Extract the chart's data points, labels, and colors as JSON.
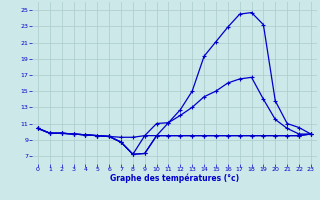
{
  "xlabel": "Graphe des températures (°c)",
  "background_color": "#cce8e8",
  "grid_color": "#aacccc",
  "line_color": "#0000cc",
  "ylim": [
    6,
    26
  ],
  "xlim": [
    -0.5,
    23.5
  ],
  "yticks": [
    7,
    9,
    11,
    13,
    15,
    17,
    19,
    21,
    23,
    25
  ],
  "xticks": [
    0,
    1,
    2,
    3,
    4,
    5,
    6,
    7,
    8,
    9,
    10,
    11,
    12,
    13,
    14,
    15,
    16,
    17,
    18,
    19,
    20,
    21,
    22,
    23
  ],
  "curve1_x": [
    0,
    1,
    2,
    3,
    4,
    5,
    6,
    7,
    8,
    9,
    10,
    11,
    12,
    13,
    14,
    15,
    16,
    17,
    18,
    19,
    20,
    21,
    22,
    23
  ],
  "curve1_y": [
    10.4,
    9.8,
    9.8,
    9.7,
    9.6,
    9.5,
    9.4,
    8.7,
    7.2,
    7.3,
    9.5,
    11.1,
    12.7,
    15.0,
    19.3,
    21.1,
    22.9,
    24.5,
    24.7,
    23.2,
    13.8,
    11.0,
    10.5,
    9.7
  ],
  "curve2_x": [
    0,
    1,
    2,
    3,
    4,
    5,
    6,
    7,
    8,
    9,
    10,
    11,
    12,
    13,
    14,
    15,
    16,
    17,
    18,
    19,
    20,
    21,
    22,
    23
  ],
  "curve2_y": [
    10.4,
    9.8,
    9.8,
    9.7,
    9.6,
    9.5,
    9.4,
    8.7,
    7.2,
    9.5,
    11.0,
    11.1,
    12.0,
    13.0,
    14.3,
    15.0,
    16.0,
    16.5,
    16.7,
    14.0,
    11.5,
    10.4,
    9.7,
    9.7
  ],
  "curve3_x": [
    0,
    1,
    2,
    3,
    4,
    5,
    6,
    7,
    8,
    9,
    10,
    11,
    12,
    13,
    14,
    15,
    16,
    17,
    18,
    19,
    20,
    21,
    22,
    23
  ],
  "curve3_y": [
    10.4,
    9.8,
    9.8,
    9.7,
    9.6,
    9.5,
    9.4,
    9.3,
    9.3,
    9.5,
    9.5,
    9.5,
    9.5,
    9.5,
    9.5,
    9.5,
    9.5,
    9.5,
    9.5,
    9.5,
    9.5,
    9.5,
    9.5,
    9.7
  ],
  "curve4_x": [
    0,
    1,
    2,
    3,
    4,
    5,
    6,
    7,
    8,
    9,
    10,
    11,
    12,
    13,
    14,
    15,
    16,
    17,
    18,
    19,
    20,
    21,
    22,
    23
  ],
  "curve4_y": [
    10.4,
    9.8,
    9.8,
    9.7,
    9.6,
    9.5,
    9.4,
    8.7,
    7.2,
    7.3,
    9.5,
    9.5,
    9.5,
    9.5,
    9.5,
    9.5,
    9.5,
    9.5,
    9.5,
    9.5,
    9.5,
    9.5,
    9.5,
    9.7
  ]
}
